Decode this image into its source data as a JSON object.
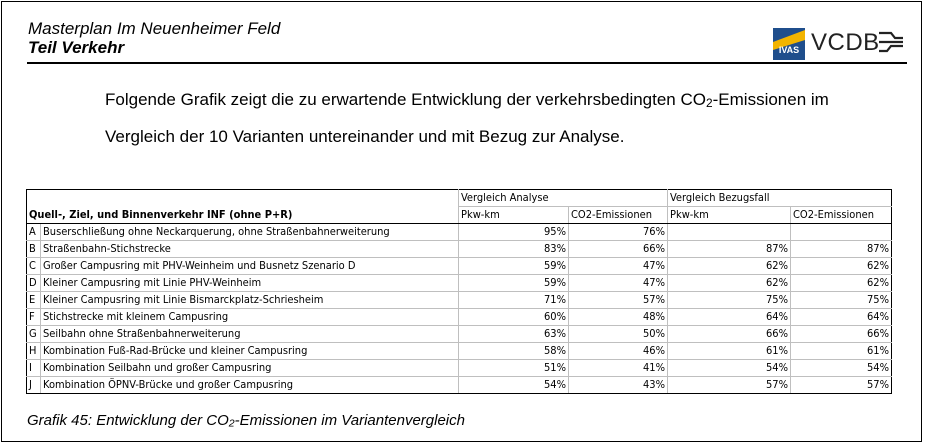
{
  "header": {
    "title": "Masterplan Im Neuenheimer Feld",
    "subtitle": "Teil Verkehr",
    "logo_ivas": "IVAS",
    "logo_vcdb": "VCDB"
  },
  "intro": {
    "line1_pre": "Folgende Grafik zeigt die zu erwartende Entwicklung der verkehrsbedingten CO",
    "line1_sub": "2",
    "line1_post": "-Emissionen im",
    "line2": "Vergleich der 10 Varianten untereinander und mit Bezug zur Analyse."
  },
  "table": {
    "row_header": "Quell-, Ziel, und Binnenverkehr INF (ohne P+R)",
    "group1": "Vergleich Analyse",
    "group2": "Vergleich Bezugsfall",
    "col_pkw": "Pkw-km",
    "col_co2": "CO2-Emissionen",
    "rows": [
      {
        "id": "A",
        "label": "Buserschließung ohne Neckarquerung, ohne Straßenbahnerweiterung",
        "a_pkw": "95%",
        "a_co2": "76%",
        "b_pkw": "",
        "b_co2": ""
      },
      {
        "id": "B",
        "label": "Straßenbahn-Stichstrecke",
        "a_pkw": "83%",
        "a_co2": "66%",
        "b_pkw": "87%",
        "b_co2": "87%"
      },
      {
        "id": "C",
        "label": "Großer Campusring mit  PHV-Weinheim und Busnetz Szenario D",
        "a_pkw": "59%",
        "a_co2": "47%",
        "b_pkw": "62%",
        "b_co2": "62%"
      },
      {
        "id": "D",
        "label": "Kleiner Campusring mit Linie PHV-Weinheim",
        "a_pkw": "59%",
        "a_co2": "47%",
        "b_pkw": "62%",
        "b_co2": "62%"
      },
      {
        "id": "E",
        "label": "Kleiner Campusring mit Linie Bismarckplatz-Schriesheim",
        "a_pkw": "71%",
        "a_co2": "57%",
        "b_pkw": "75%",
        "b_co2": "75%"
      },
      {
        "id": "F",
        "label": "Stichstrecke mit kleinem Campusring",
        "a_pkw": "60%",
        "a_co2": "48%",
        "b_pkw": "64%",
        "b_co2": "64%"
      },
      {
        "id": "G",
        "label": "Seilbahn ohne Straßenbahnerweiterung",
        "a_pkw": "63%",
        "a_co2": "50%",
        "b_pkw": "66%",
        "b_co2": "66%"
      },
      {
        "id": "H",
        "label": "Kombination Fuß-Rad-Brücke und kleiner Campusring",
        "a_pkw": "58%",
        "a_co2": "46%",
        "b_pkw": "61%",
        "b_co2": "61%"
      },
      {
        "id": "I",
        "label": "Kombination Seilbahn und großer Campusring",
        "a_pkw": "51%",
        "a_co2": "41%",
        "b_pkw": "54%",
        "b_co2": "54%"
      },
      {
        "id": "J",
        "label": "Kombination ÖPNV-Brücke und großer Campusring",
        "a_pkw": "54%",
        "a_co2": "43%",
        "b_pkw": "57%",
        "b_co2": "57%"
      }
    ]
  },
  "caption": {
    "pre": "Grafik 45: Entwicklung der CO",
    "sub": "2",
    "post": "-Emissionen im Variantenvergleich"
  }
}
